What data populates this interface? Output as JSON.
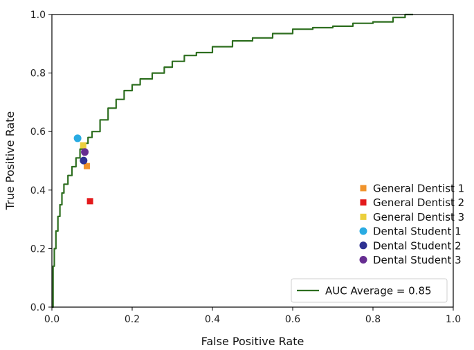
{
  "chart_data": {
    "type": "line",
    "title": "",
    "xlabel": "False Positive Rate",
    "ylabel": "True Positive Rate",
    "xlim": [
      0.0,
      1.0
    ],
    "ylim": [
      0.0,
      1.0
    ],
    "xticks": [
      "0.0",
      "0.2",
      "0.4",
      "0.6",
      "0.8",
      "1.0"
    ],
    "yticks": [
      "0.0",
      "0.2",
      "0.4",
      "0.6",
      "0.8",
      "1.0"
    ],
    "grid": false,
    "series": [
      {
        "name": "AUC Average = 0.85",
        "kind": "line",
        "color": "#2d6e1f",
        "x": [
          0.0,
          0.003,
          0.006,
          0.01,
          0.015,
          0.02,
          0.025,
          0.03,
          0.04,
          0.05,
          0.06,
          0.07,
          0.08,
          0.09,
          0.1,
          0.12,
          0.14,
          0.16,
          0.18,
          0.2,
          0.22,
          0.25,
          0.28,
          0.3,
          0.33,
          0.36,
          0.4,
          0.45,
          0.5,
          0.55,
          0.6,
          0.65,
          0.7,
          0.75,
          0.8,
          0.85,
          0.88,
          0.9
        ],
        "y": [
          0.0,
          0.14,
          0.2,
          0.26,
          0.31,
          0.35,
          0.39,
          0.42,
          0.45,
          0.48,
          0.51,
          0.54,
          0.56,
          0.58,
          0.6,
          0.64,
          0.68,
          0.71,
          0.74,
          0.76,
          0.78,
          0.8,
          0.82,
          0.84,
          0.86,
          0.87,
          0.89,
          0.91,
          0.92,
          0.935,
          0.95,
          0.955,
          0.96,
          0.97,
          0.975,
          0.99,
          1.0,
          1.0
        ]
      },
      {
        "name": "General Dentist 1",
        "kind": "point",
        "marker": "square",
        "color": "#f0932b",
        "x": 0.087,
        "y": 0.482
      },
      {
        "name": "General Dentist 2",
        "kind": "point",
        "marker": "square",
        "color": "#e31a1c",
        "x": 0.095,
        "y": 0.362
      },
      {
        "name": "General Dentist 3",
        "kind": "point",
        "marker": "square",
        "color": "#ebcf3c",
        "x": 0.078,
        "y": 0.553
      },
      {
        "name": "Dental Student 1",
        "kind": "point",
        "marker": "circle",
        "color": "#29abe2",
        "x": 0.064,
        "y": 0.577
      },
      {
        "name": "Dental Student 2",
        "kind": "point",
        "marker": "circle",
        "color": "#2e3192",
        "x": 0.079,
        "y": 0.501
      },
      {
        "name": "Dental Student 3",
        "kind": "point",
        "marker": "circle",
        "color": "#662d91",
        "x": 0.082,
        "y": 0.53
      }
    ],
    "legend_position": "lower-right"
  }
}
